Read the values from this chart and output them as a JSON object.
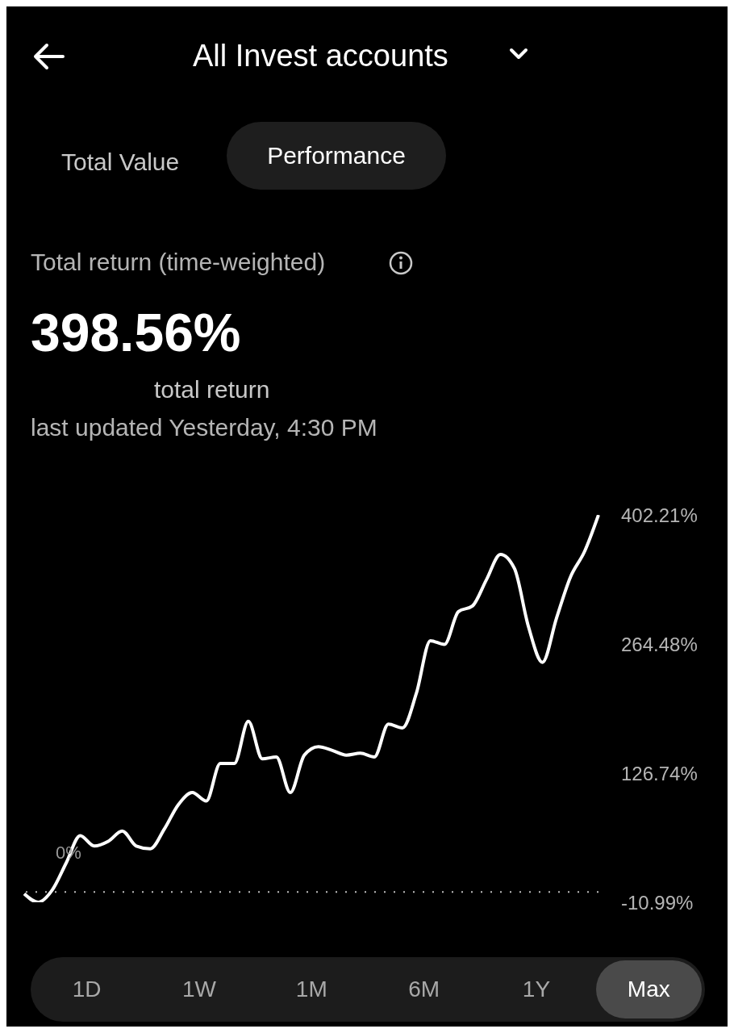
{
  "chart_data": {
    "type": "line",
    "title": "All Invest accounts",
    "subtitle": "Total return (time-weighted)",
    "annotations": [
      "Total Value",
      "Performance",
      "398.56%",
      "total return",
      "last updated Yesterday, 4:30 PM",
      "1D",
      "1W",
      "1M",
      "6M",
      "1Y",
      "Max"
    ],
    "categories": [
      null,
      null,
      null,
      null,
      null,
      null,
      null,
      null,
      null,
      null,
      null,
      null,
      null,
      null,
      null,
      null,
      null,
      null,
      null,
      null,
      null,
      null,
      null,
      null,
      null,
      null,
      null,
      null,
      null,
      null,
      null,
      null,
      null,
      null,
      null,
      null,
      null,
      null,
      null,
      null,
      null,
      null
    ],
    "series": [
      {
        "color": "#ffffff",
        "values": [
          -2,
          -10.99,
          2,
          31,
          60,
          49,
          54,
          65,
          49,
          46,
          67,
          93,
          106,
          97,
          137,
          137,
          182,
          142,
          144,
          106,
          146,
          155,
          151,
          146,
          148,
          144,
          179,
          175,
          212,
          268,
          264,
          299,
          305,
          333,
          360,
          345,
          283,
          245,
          292,
          336,
          363,
          402.21
        ]
      }
    ],
    "ylim": [
      -10.99,
      402.21
    ],
    "yticks": [
      {
        "value": 402.21,
        "label": "402.21%"
      },
      {
        "value": 264.48,
        "label": "264.48%"
      },
      {
        "value": 126.74,
        "label": "126.74%"
      },
      {
        "value": -10.99,
        "label": "-10.99%"
      }
    ],
    "ref_lines": [
      {
        "axis": "y",
        "value": 0,
        "label": "0%",
        "color": "#bbbbbb",
        "line_style": "dotted"
      }
    ],
    "marker": "none",
    "line_style": "solid"
  }
}
